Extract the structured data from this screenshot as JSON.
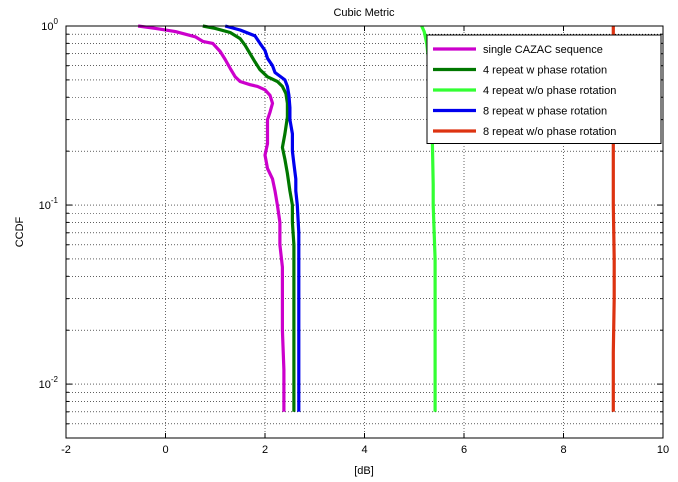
{
  "chart_data": {
    "type": "line",
    "title": "Cubic Metric",
    "xlabel": "[dB]",
    "ylabel": "CCDF",
    "xlim": [
      -2,
      10
    ],
    "ylim": [
      0.005,
      1
    ],
    "yscale": "log",
    "xticks": [
      "-2",
      "0",
      "2",
      "4",
      "6",
      "8",
      "10"
    ],
    "ytick_major": [
      {
        "base": "10",
        "exp": "-2",
        "value": 0.01
      },
      {
        "base": "10",
        "exp": "-1",
        "value": 0.1
      },
      {
        "base": "10",
        "exp": "0",
        "value": 1
      }
    ],
    "grid": true,
    "legend_position": "top-right",
    "series": [
      {
        "name": "single CAZAC sequence",
        "color": "#cc00cc",
        "points": [
          [
            -0.55,
            1.0
          ],
          [
            -0.2,
            0.97
          ],
          [
            0.2,
            0.93
          ],
          [
            0.6,
            0.87
          ],
          [
            0.75,
            0.82
          ],
          [
            0.95,
            0.8
          ],
          [
            1.1,
            0.72
          ],
          [
            1.2,
            0.65
          ],
          [
            1.3,
            0.58
          ],
          [
            1.4,
            0.52
          ],
          [
            1.5,
            0.49
          ],
          [
            1.7,
            0.47
          ],
          [
            1.85,
            0.46
          ],
          [
            2.0,
            0.44
          ],
          [
            2.1,
            0.41
          ],
          [
            2.15,
            0.37
          ],
          [
            2.1,
            0.33
          ],
          [
            2.05,
            0.3
          ],
          [
            2.05,
            0.26
          ],
          [
            2.05,
            0.22
          ],
          [
            2.0,
            0.19
          ],
          [
            2.05,
            0.16
          ],
          [
            2.15,
            0.14
          ],
          [
            2.2,
            0.12
          ],
          [
            2.25,
            0.1
          ],
          [
            2.3,
            0.08
          ],
          [
            2.3,
            0.06
          ],
          [
            2.35,
            0.045
          ],
          [
            2.35,
            0.03
          ],
          [
            2.35,
            0.02
          ],
          [
            2.38,
            0.012
          ],
          [
            2.38,
            0.007
          ]
        ]
      },
      {
        "name": "4 repeat w phase rotation",
        "color": "#007700",
        "points": [
          [
            0.75,
            1.0
          ],
          [
            1.0,
            0.97
          ],
          [
            1.3,
            0.92
          ],
          [
            1.5,
            0.85
          ],
          [
            1.6,
            0.78
          ],
          [
            1.7,
            0.7
          ],
          [
            1.8,
            0.63
          ],
          [
            1.9,
            0.57
          ],
          [
            2.05,
            0.52
          ],
          [
            2.25,
            0.49
          ],
          [
            2.35,
            0.46
          ],
          [
            2.42,
            0.42
          ],
          [
            2.45,
            0.37
          ],
          [
            2.45,
            0.31
          ],
          [
            2.4,
            0.25
          ],
          [
            2.35,
            0.21
          ],
          [
            2.4,
            0.18
          ],
          [
            2.45,
            0.15
          ],
          [
            2.5,
            0.12
          ],
          [
            2.55,
            0.1
          ],
          [
            2.55,
            0.08
          ],
          [
            2.58,
            0.06
          ],
          [
            2.58,
            0.04
          ],
          [
            2.58,
            0.025
          ],
          [
            2.58,
            0.015
          ],
          [
            2.58,
            0.007
          ]
        ]
      },
      {
        "name": "4 repeat w/o phase rotation",
        "color": "#33ff33",
        "points": [
          [
            5.15,
            1.0
          ],
          [
            5.2,
            0.93
          ],
          [
            5.25,
            0.8
          ],
          [
            5.3,
            0.6
          ],
          [
            5.35,
            0.35
          ],
          [
            5.38,
            0.13
          ],
          [
            5.38,
            0.1
          ],
          [
            5.42,
            0.05
          ],
          [
            5.42,
            0.02
          ],
          [
            5.42,
            0.007
          ]
        ]
      },
      {
        "name": "8 repeat w phase rotation",
        "color": "#0000ee",
        "points": [
          [
            1.2,
            1.0
          ],
          [
            1.5,
            0.95
          ],
          [
            1.8,
            0.88
          ],
          [
            1.9,
            0.8
          ],
          [
            2.0,
            0.73
          ],
          [
            2.05,
            0.66
          ],
          [
            2.15,
            0.6
          ],
          [
            2.2,
            0.55
          ],
          [
            2.4,
            0.5
          ],
          [
            2.45,
            0.46
          ],
          [
            2.48,
            0.41
          ],
          [
            2.5,
            0.35
          ],
          [
            2.5,
            0.3
          ],
          [
            2.55,
            0.25
          ],
          [
            2.55,
            0.2
          ],
          [
            2.58,
            0.17
          ],
          [
            2.62,
            0.14
          ],
          [
            2.62,
            0.12
          ],
          [
            2.65,
            0.1
          ],
          [
            2.68,
            0.07
          ],
          [
            2.68,
            0.05
          ],
          [
            2.68,
            0.03
          ],
          [
            2.68,
            0.02
          ],
          [
            2.68,
            0.007
          ]
        ]
      },
      {
        "name": "8 repeat w/o phase rotation",
        "color": "#dd3311",
        "points": [
          [
            9.0,
            1.0
          ],
          [
            9.0,
            0.6
          ],
          [
            9.0,
            0.2
          ],
          [
            9.0,
            0.1
          ],
          [
            9.02,
            0.05
          ],
          [
            9.02,
            0.03
          ],
          [
            9.0,
            0.015
          ],
          [
            9.0,
            0.007
          ]
        ]
      }
    ]
  }
}
